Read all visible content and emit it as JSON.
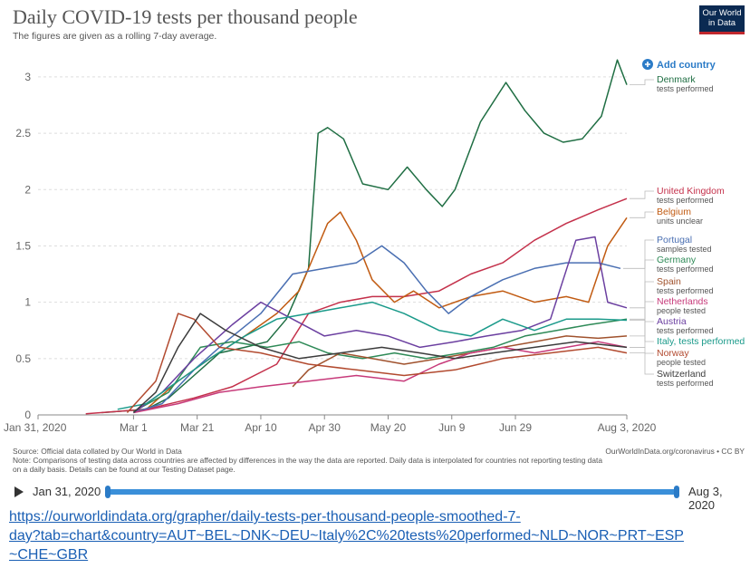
{
  "header": {
    "title": "Daily COVID-19 tests per thousand people",
    "subtitle": "The figures are given as a rolling 7-day average.",
    "logo_line1": "Our World",
    "logo_line2": "in Data",
    "add_country": "Add country"
  },
  "chart_data": {
    "type": "line",
    "x_axis_type": "date",
    "y_ticks": [
      "0",
      "0.5",
      "1",
      "1.5",
      "2",
      "2.5",
      "3"
    ],
    "ylim": [
      0,
      3.2
    ],
    "x_ticks": [
      "Jan 31, 2020",
      "Mar 1",
      "Mar 21",
      "Apr 10",
      "Apr 30",
      "May 20",
      "Jun 9",
      "Jun 29",
      "Aug 3, 2020"
    ],
    "xlim": [
      "2020-01-31",
      "2020-08-03"
    ],
    "grid": "horizontal",
    "legend_placement": "right",
    "series": [
      {
        "name": "Denmark",
        "sublabel": "tests performed",
        "color": "#1f6e43",
        "points": [
          [
            "2020-02-20",
            0.02
          ],
          [
            "2020-03-05",
            0.05
          ],
          [
            "2020-03-12",
            0.15
          ],
          [
            "2020-03-20",
            0.35
          ],
          [
            "2020-03-28",
            0.55
          ],
          [
            "2020-04-05",
            0.6
          ],
          [
            "2020-04-12",
            0.65
          ],
          [
            "2020-04-18",
            0.85
          ],
          [
            "2020-04-25",
            1.3
          ],
          [
            "2020-04-28",
            2.5
          ],
          [
            "2020-05-01",
            2.55
          ],
          [
            "2020-05-06",
            2.45
          ],
          [
            "2020-05-12",
            2.05
          ],
          [
            "2020-05-20",
            2.0
          ],
          [
            "2020-05-26",
            2.2
          ],
          [
            "2020-06-01",
            2.0
          ],
          [
            "2020-06-06",
            1.85
          ],
          [
            "2020-06-10",
            2.0
          ],
          [
            "2020-06-18",
            2.6
          ],
          [
            "2020-06-26",
            2.95
          ],
          [
            "2020-07-02",
            2.7
          ],
          [
            "2020-07-08",
            2.5
          ],
          [
            "2020-07-14",
            2.42
          ],
          [
            "2020-07-20",
            2.45
          ],
          [
            "2020-07-26",
            2.65
          ],
          [
            "2020-07-31",
            3.15
          ],
          [
            "2020-08-03",
            2.93
          ]
        ]
      },
      {
        "name": "United Kingdom",
        "sublabel": "tests performed",
        "color": "#c4314b",
        "points": [
          [
            "2020-02-15",
            0.01
          ],
          [
            "2020-03-05",
            0.05
          ],
          [
            "2020-03-20",
            0.15
          ],
          [
            "2020-04-01",
            0.25
          ],
          [
            "2020-04-15",
            0.45
          ],
          [
            "2020-04-25",
            0.9
          ],
          [
            "2020-05-05",
            1.0
          ],
          [
            "2020-05-15",
            1.05
          ],
          [
            "2020-05-25",
            1.05
          ],
          [
            "2020-06-05",
            1.1
          ],
          [
            "2020-06-15",
            1.25
          ],
          [
            "2020-06-25",
            1.35
          ],
          [
            "2020-07-05",
            1.55
          ],
          [
            "2020-07-15",
            1.7
          ],
          [
            "2020-07-25",
            1.82
          ],
          [
            "2020-08-03",
            1.92
          ]
        ]
      },
      {
        "name": "Belgium",
        "sublabel": "units unclear",
        "color": "#c15b12",
        "points": [
          [
            "2020-03-05",
            0.05
          ],
          [
            "2020-03-15",
            0.3
          ],
          [
            "2020-03-25",
            0.5
          ],
          [
            "2020-04-05",
            0.7
          ],
          [
            "2020-04-15",
            0.9
          ],
          [
            "2020-04-22",
            1.1
          ],
          [
            "2020-05-01",
            1.7
          ],
          [
            "2020-05-05",
            1.8
          ],
          [
            "2020-05-10",
            1.55
          ],
          [
            "2020-05-15",
            1.2
          ],
          [
            "2020-05-22",
            1.0
          ],
          [
            "2020-05-28",
            1.1
          ],
          [
            "2020-06-05",
            0.95
          ],
          [
            "2020-06-15",
            1.05
          ],
          [
            "2020-06-25",
            1.1
          ],
          [
            "2020-07-05",
            1.0
          ],
          [
            "2020-07-15",
            1.05
          ],
          [
            "2020-07-22",
            1.0
          ],
          [
            "2020-07-28",
            1.5
          ],
          [
            "2020-08-03",
            1.75
          ]
        ]
      },
      {
        "name": "Portugal",
        "sublabel": "samples tested",
        "color": "#4a6fb2",
        "points": [
          [
            "2020-03-01",
            0.02
          ],
          [
            "2020-03-10",
            0.1
          ],
          [
            "2020-03-20",
            0.4
          ],
          [
            "2020-03-30",
            0.65
          ],
          [
            "2020-04-10",
            0.9
          ],
          [
            "2020-04-20",
            1.25
          ],
          [
            "2020-04-30",
            1.3
          ],
          [
            "2020-05-10",
            1.35
          ],
          [
            "2020-05-18",
            1.5
          ],
          [
            "2020-05-25",
            1.35
          ],
          [
            "2020-06-01",
            1.1
          ],
          [
            "2020-06-08",
            0.9
          ],
          [
            "2020-06-15",
            1.05
          ],
          [
            "2020-06-25",
            1.2
          ],
          [
            "2020-07-05",
            1.3
          ],
          [
            "2020-07-15",
            1.35
          ],
          [
            "2020-07-25",
            1.35
          ],
          [
            "2020-08-01",
            1.3
          ]
        ]
      },
      {
        "name": "Germany",
        "sublabel": "tests performed",
        "color": "#2e8a57",
        "points": [
          [
            "2020-03-01",
            0.03
          ],
          [
            "2020-03-12",
            0.2
          ],
          [
            "2020-03-22",
            0.6
          ],
          [
            "2020-04-01",
            0.65
          ],
          [
            "2020-04-12",
            0.6
          ],
          [
            "2020-04-22",
            0.65
          ],
          [
            "2020-05-01",
            0.55
          ],
          [
            "2020-05-12",
            0.5
          ],
          [
            "2020-05-22",
            0.55
          ],
          [
            "2020-06-01",
            0.5
          ],
          [
            "2020-06-12",
            0.55
          ],
          [
            "2020-06-22",
            0.6
          ],
          [
            "2020-07-02",
            0.7
          ],
          [
            "2020-07-12",
            0.75
          ],
          [
            "2020-07-22",
            0.8
          ],
          [
            "2020-08-03",
            0.85
          ]
        ]
      },
      {
        "name": "Spain",
        "sublabel": "tests performed",
        "color": "#a0522d",
        "points": [
          [
            "2020-04-20",
            0.25
          ],
          [
            "2020-04-25",
            0.4
          ],
          [
            "2020-05-05",
            0.55
          ],
          [
            "2020-05-15",
            0.5
          ],
          [
            "2020-05-25",
            0.45
          ],
          [
            "2020-06-05",
            0.5
          ],
          [
            "2020-06-15",
            0.55
          ],
          [
            "2020-06-25",
            0.6
          ],
          [
            "2020-07-05",
            0.65
          ],
          [
            "2020-07-15",
            0.7
          ],
          [
            "2020-07-25",
            0.68
          ],
          [
            "2020-08-03",
            0.7
          ]
        ]
      },
      {
        "name": "Netherlands",
        "sublabel": "people tested",
        "color": "#c73a7a",
        "points": [
          [
            "2020-03-01",
            0.02
          ],
          [
            "2020-03-15",
            0.1
          ],
          [
            "2020-03-28",
            0.2
          ],
          [
            "2020-04-10",
            0.25
          ],
          [
            "2020-04-25",
            0.3
          ],
          [
            "2020-05-10",
            0.35
          ],
          [
            "2020-05-25",
            0.3
          ],
          [
            "2020-06-05",
            0.45
          ],
          [
            "2020-06-15",
            0.55
          ],
          [
            "2020-06-25",
            0.6
          ],
          [
            "2020-07-05",
            0.55
          ],
          [
            "2020-07-15",
            0.6
          ],
          [
            "2020-07-25",
            0.65
          ],
          [
            "2020-08-03",
            0.6
          ]
        ]
      },
      {
        "name": "Austria",
        "sublabel": "tests performed",
        "color": "#6b3fa0",
        "points": [
          [
            "2020-03-01",
            0.02
          ],
          [
            "2020-03-10",
            0.2
          ],
          [
            "2020-03-20",
            0.5
          ],
          [
            "2020-04-01",
            0.8
          ],
          [
            "2020-04-10",
            1.0
          ],
          [
            "2020-04-20",
            0.85
          ],
          [
            "2020-04-30",
            0.7
          ],
          [
            "2020-05-10",
            0.75
          ],
          [
            "2020-05-20",
            0.7
          ],
          [
            "2020-05-30",
            0.6
          ],
          [
            "2020-06-10",
            0.65
          ],
          [
            "2020-06-20",
            0.7
          ],
          [
            "2020-07-01",
            0.75
          ],
          [
            "2020-07-10",
            0.85
          ],
          [
            "2020-07-18",
            1.55
          ],
          [
            "2020-07-24",
            1.58
          ],
          [
            "2020-07-28",
            1.0
          ],
          [
            "2020-08-03",
            0.95
          ]
        ]
      },
      {
        "name": "Italy, tests performed",
        "sublabel": "",
        "color": "#1a9a8a",
        "points": [
          [
            "2020-02-25",
            0.05
          ],
          [
            "2020-03-05",
            0.1
          ],
          [
            "2020-03-15",
            0.3
          ],
          [
            "2020-03-25",
            0.5
          ],
          [
            "2020-04-05",
            0.7
          ],
          [
            "2020-04-15",
            0.85
          ],
          [
            "2020-04-25",
            0.9
          ],
          [
            "2020-05-05",
            0.95
          ],
          [
            "2020-05-15",
            1.0
          ],
          [
            "2020-05-25",
            0.9
          ],
          [
            "2020-06-05",
            0.75
          ],
          [
            "2020-06-15",
            0.7
          ],
          [
            "2020-06-25",
            0.85
          ],
          [
            "2020-07-05",
            0.75
          ],
          [
            "2020-07-15",
            0.85
          ],
          [
            "2020-07-25",
            0.85
          ],
          [
            "2020-08-03",
            0.84
          ]
        ]
      },
      {
        "name": "Norway",
        "sublabel": "people tested",
        "color": "#b24a2f",
        "points": [
          [
            "2020-02-28",
            0.02
          ],
          [
            "2020-03-08",
            0.3
          ],
          [
            "2020-03-15",
            0.9
          ],
          [
            "2020-03-20",
            0.85
          ],
          [
            "2020-03-28",
            0.6
          ],
          [
            "2020-04-10",
            0.55
          ],
          [
            "2020-04-25",
            0.45
          ],
          [
            "2020-05-10",
            0.4
          ],
          [
            "2020-05-25",
            0.35
          ],
          [
            "2020-06-10",
            0.4
          ],
          [
            "2020-06-25",
            0.5
          ],
          [
            "2020-07-10",
            0.55
          ],
          [
            "2020-07-25",
            0.6
          ],
          [
            "2020-08-03",
            0.55
          ]
        ]
      },
      {
        "name": "Switzerland",
        "sublabel": "tests performed",
        "color": "#3c3c3c",
        "points": [
          [
            "2020-03-01",
            0.02
          ],
          [
            "2020-03-08",
            0.2
          ],
          [
            "2020-03-15",
            0.6
          ],
          [
            "2020-03-22",
            0.9
          ],
          [
            "2020-03-30",
            0.75
          ],
          [
            "2020-04-10",
            0.6
          ],
          [
            "2020-04-22",
            0.5
          ],
          [
            "2020-05-05",
            0.55
          ],
          [
            "2020-05-18",
            0.6
          ],
          [
            "2020-05-30",
            0.55
          ],
          [
            "2020-06-10",
            0.5
          ],
          [
            "2020-06-22",
            0.55
          ],
          [
            "2020-07-05",
            0.6
          ],
          [
            "2020-07-18",
            0.65
          ],
          [
            "2020-08-03",
            0.6
          ]
        ]
      }
    ]
  },
  "footer": {
    "source": "Source: Official data collated by Our World in Data",
    "credit": "OurWorldInData.org/coronavirus • CC BY",
    "note1": "Note: Comparisons of testing data across countries are affected by differences in the way the data are reported. Daily data is interpolated for countries not reporting testing data",
    "note2": "on a daily basis. Details can be found at our Testing Dataset page."
  },
  "timeline": {
    "start": "Jan 31, 2020",
    "end": "Aug 3, 2020"
  },
  "link": {
    "line1": "https://ourworldindata.org/grapher/daily-tests-per-thousand-people-smoothed-7-",
    "line2": "day?tab=chart&country=AUT~BEL~DNK~DEU~Italy%2C%20tests%20performed~NLD~NOR~PRT~ESP",
    "line3": "~CHE~GBR"
  }
}
